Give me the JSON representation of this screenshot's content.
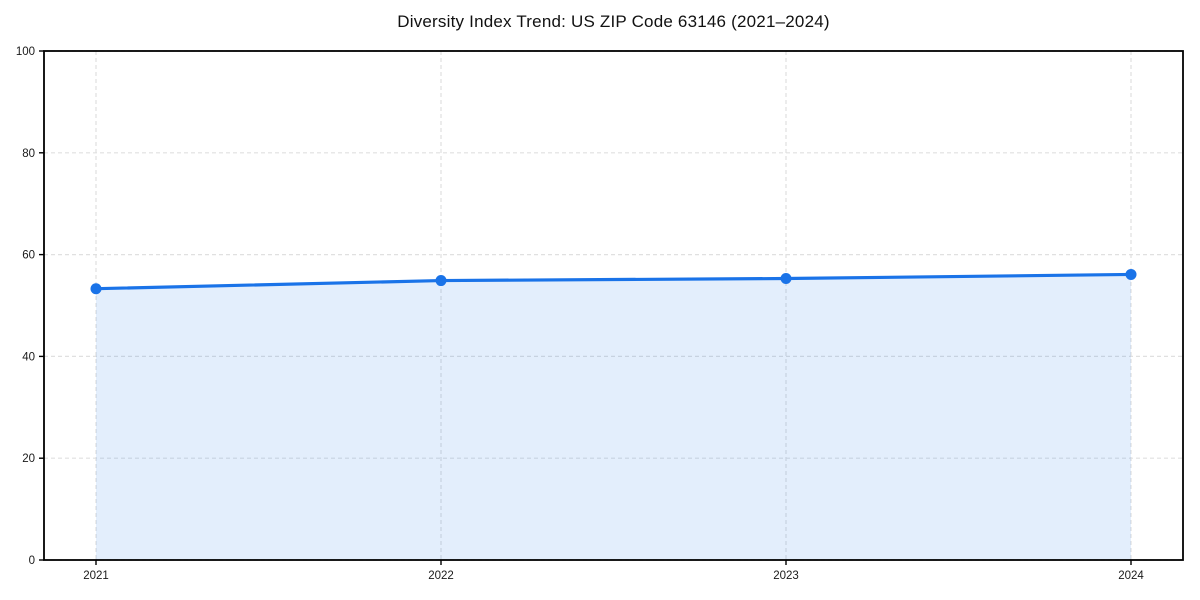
{
  "figure": {
    "background": "#ffffff"
  },
  "chart_data": {
    "type": "line",
    "subtype": "line-with-area-fill-and-markers",
    "title": "Diversity Index Trend: US ZIP Code 63146 (2021–2024)",
    "x": [
      2021,
      2022,
      2023,
      2024
    ],
    "xtick_labels": [
      "2021",
      "2022",
      "2023",
      "2024"
    ],
    "series": [
      {
        "name": "Diversity Index",
        "values": [
          53.3,
          54.9,
          55.3,
          56.1
        ]
      }
    ],
    "xlabel": "",
    "ylabel": "",
    "ylim": [
      0,
      100
    ],
    "yticks": [
      0,
      20,
      40,
      60,
      80,
      100
    ],
    "grid": "on",
    "grid_style": "dashed",
    "legend": "none",
    "colors": {
      "line": "#1a73e8",
      "marker": "#1a73e8",
      "fill": "rgba(26,115,232,0.12)",
      "grid": "#e0e0e0",
      "axis": "#000000",
      "tick_label": "#1a1a1a",
      "title": "#111111"
    }
  }
}
